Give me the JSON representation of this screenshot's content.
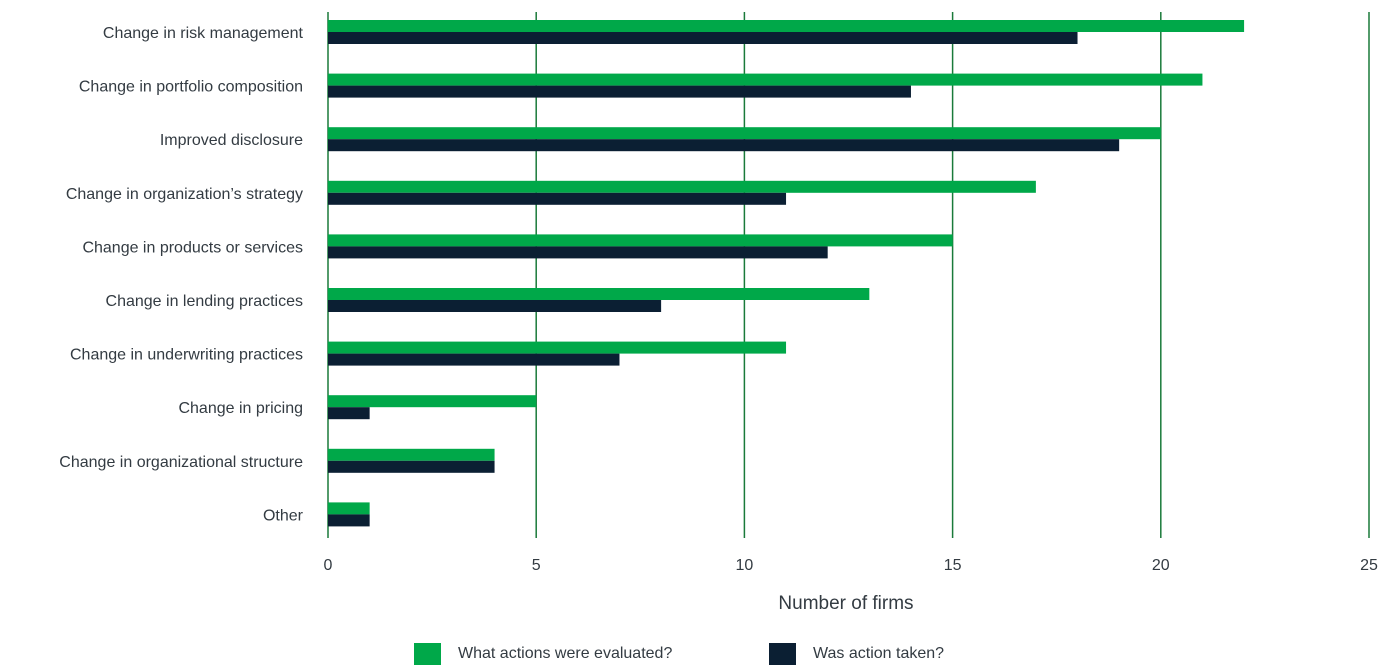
{
  "chart_data": {
    "type": "bar",
    "orientation": "horizontal",
    "categories": [
      "Change in risk management",
      "Change in portfolio composition",
      "Improved disclosure",
      "Change in organization’s strategy",
      "Change in products or services",
      "Change in lending practices",
      "Change in underwriting practices",
      "Change in pricing",
      "Change in organizational structure",
      "Other"
    ],
    "series": [
      {
        "name": "What actions were evaluated?",
        "color": "#00a849",
        "values": [
          22,
          21,
          20,
          17,
          15,
          13,
          11,
          5,
          4,
          1
        ]
      },
      {
        "name": "Was action taken?",
        "color": "#0b1f33",
        "values": [
          18,
          14,
          19,
          11,
          12,
          8,
          7,
          1,
          4,
          1
        ]
      }
    ],
    "xlabel": "Number of firms",
    "xlim": [
      0,
      25
    ],
    "xticks": [
      "0",
      "5",
      "10",
      "15",
      "20",
      "25"
    ],
    "grid": true,
    "grid_color": "#1a7a3a",
    "legend_position": "bottom"
  }
}
